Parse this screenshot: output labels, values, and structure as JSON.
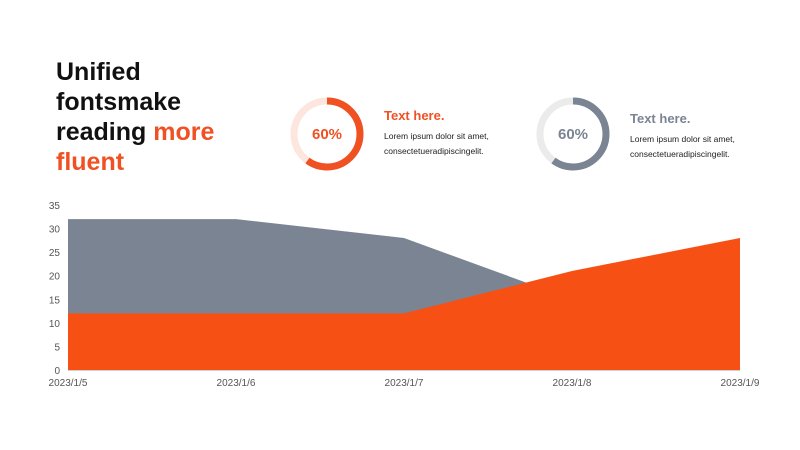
{
  "title": {
    "line1": "Unified",
    "line2": "fontsmake",
    "line3_plain": "reading ",
    "line3_accent": "more",
    "line4_accent": "fluent"
  },
  "kpis": [
    {
      "value": 60,
      "label": "60%",
      "heading": "Text here.",
      "body_line1": "Lorem ipsum  dolor sit amet,",
      "body_line2": "consectetueradipiscingelit.",
      "color": "#f05122",
      "track_color": "#fde6dd"
    },
    {
      "value": 60,
      "label": "60%",
      "heading": "Text here.",
      "body_line1": "Lorem ipsum  dolor sit amet,",
      "body_line2": "consectetueradipiscingelit.",
      "color": "#7a8493",
      "track_color": "#ebebeb"
    }
  ],
  "chart_data": {
    "type": "area",
    "categories": [
      "2023/1/5",
      "2023/1/6",
      "2023/1/7",
      "2023/1/8",
      "2023/1/9"
    ],
    "yticks": [
      "0",
      "5",
      "10",
      "15",
      "20",
      "25",
      "30",
      "35"
    ],
    "ylim": [
      0,
      35
    ],
    "grid": false,
    "series": [
      {
        "values": [
          32,
          32,
          28,
          15,
          8
        ],
        "color": "#7a8493"
      },
      {
        "values": [
          12,
          12,
          12,
          21,
          28
        ],
        "color": "#f75015"
      }
    ]
  }
}
